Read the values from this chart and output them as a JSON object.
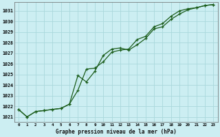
{
  "title": "Graphe pression niveau de la mer (hPa)",
  "bg_color": "#cceef2",
  "grid_color": "#aad8dc",
  "line_color": "#1a5c1a",
  "x_labels": [
    "0",
    "1",
    "2",
    "3",
    "4",
    "5",
    "6",
    "7",
    "8",
    "9",
    "10",
    "11",
    "12",
    "13",
    "14",
    "15",
    "16",
    "17",
    "18",
    "19",
    "20",
    "21",
    "22",
    "23"
  ],
  "ylim": [
    1020.5,
    1031.8
  ],
  "yticks": [
    1021,
    1022,
    1023,
    1024,
    1025,
    1026,
    1027,
    1028,
    1029,
    1030,
    1031
  ],
  "line1": [
    1021.7,
    1021.0,
    1021.5,
    1021.6,
    1021.7,
    1021.8,
    1022.2,
    1024.9,
    1024.3,
    1025.3,
    1026.8,
    1027.4,
    1027.5,
    1027.3,
    1027.8,
    1028.4,
    1029.3,
    1029.5,
    1030.2,
    1030.7,
    1031.1,
    1031.3,
    1031.5,
    1031.6
  ],
  "line2": [
    1021.7,
    1021.0,
    1021.5,
    1021.6,
    1021.7,
    1021.8,
    1022.2,
    1023.5,
    1025.5,
    1025.6,
    1026.2,
    1027.1,
    1027.3,
    1027.4,
    1028.3,
    1028.6,
    1029.5,
    1029.8,
    1030.5,
    1031.0,
    1031.2,
    1031.3,
    1031.5,
    1031.6
  ]
}
